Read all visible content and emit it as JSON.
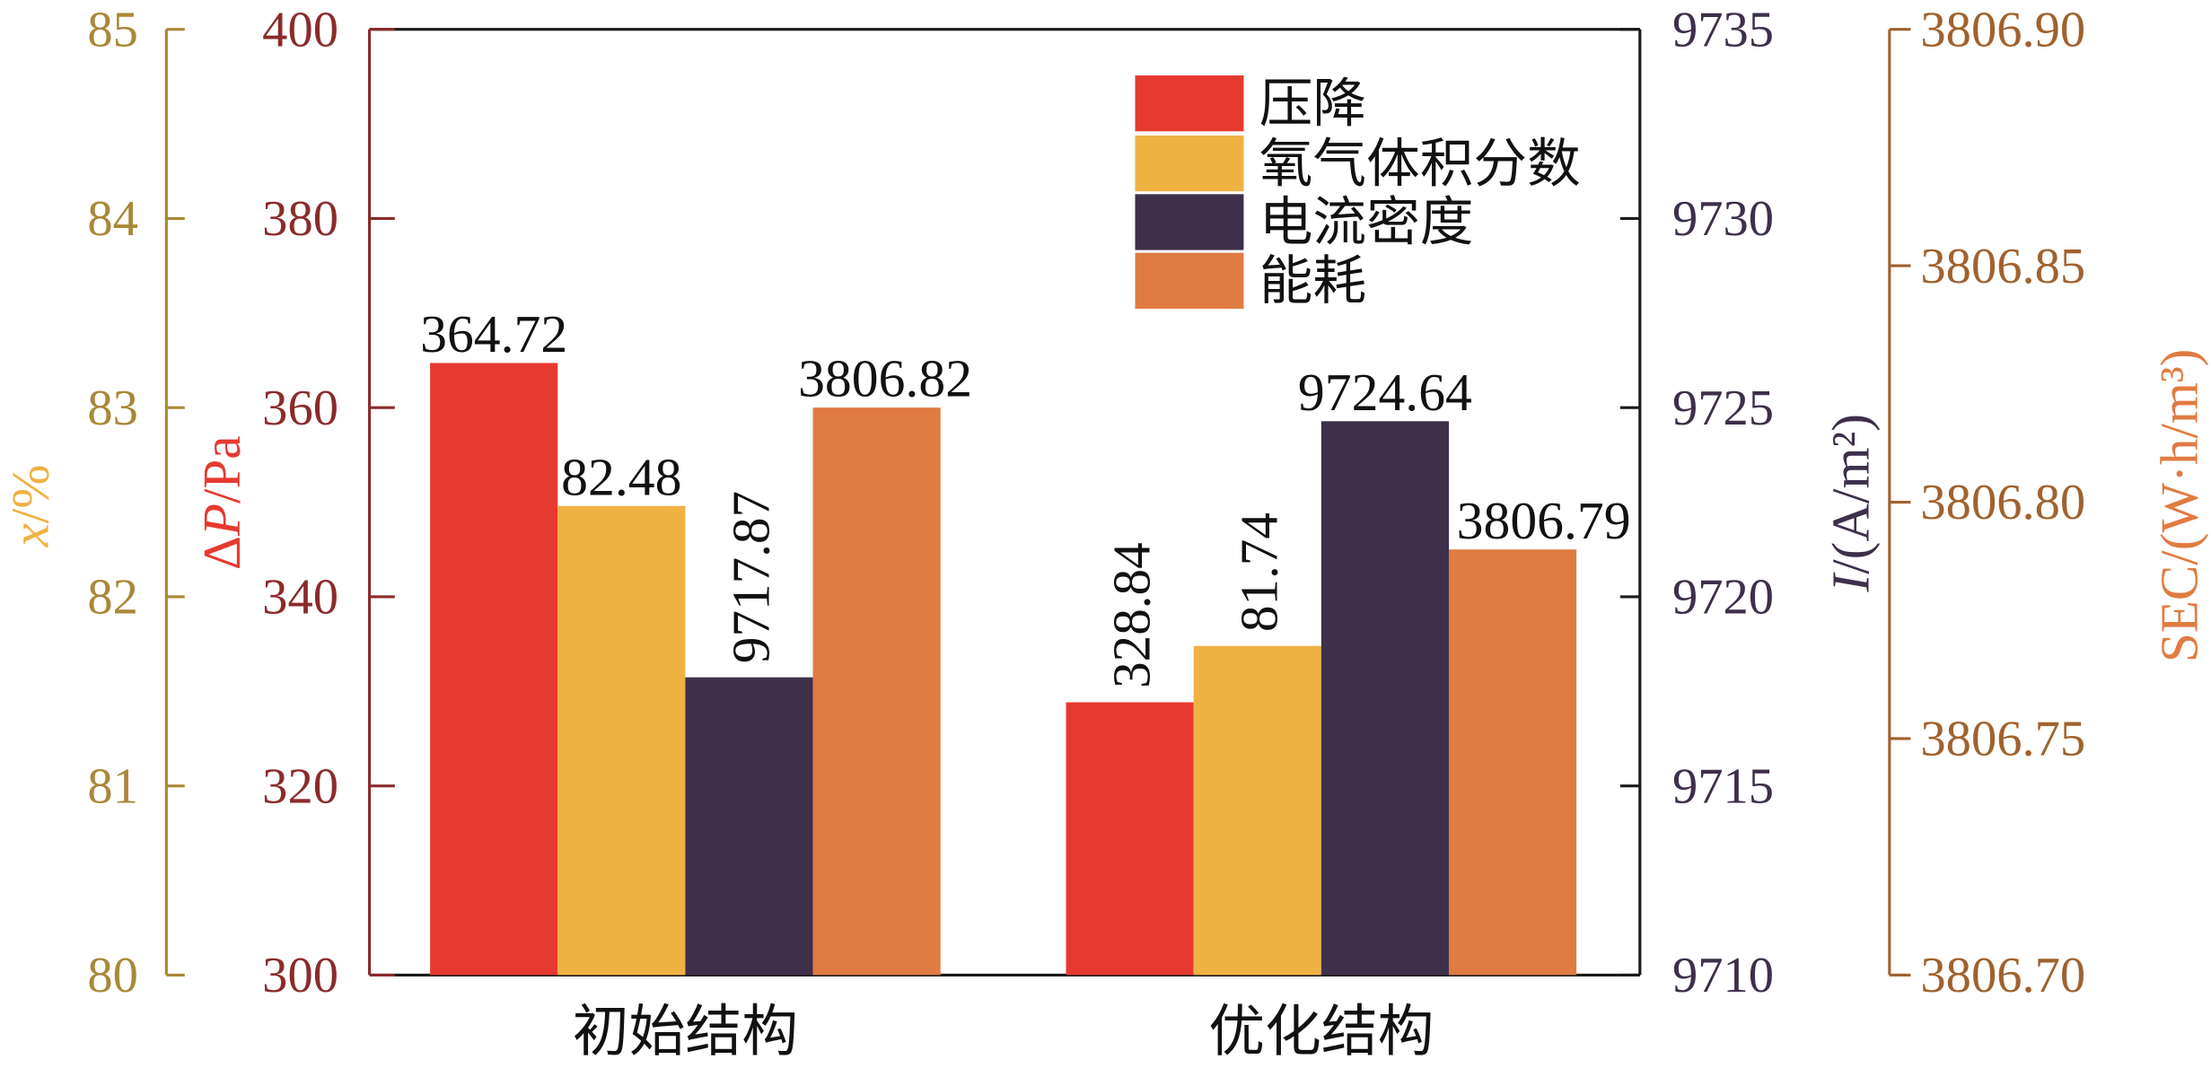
{
  "chart_data": {
    "type": "bar",
    "categories": [
      "初始结构",
      "优化结构"
    ],
    "series": [
      {
        "name": "压降",
        "axis": 1,
        "values": [
          364.72,
          328.84
        ],
        "labels": [
          "364.72",
          "328.84"
        ],
        "color": "#E63A30"
      },
      {
        "name": "氧气体积分数",
        "axis": 0,
        "values": [
          82.48,
          81.74
        ],
        "labels": [
          "82.48",
          "81.74"
        ],
        "color": "#F0B143"
      },
      {
        "name": "电流密度",
        "axis": 2,
        "values": [
          9717.87,
          9724.64
        ],
        "labels": [
          "9717.87",
          "9724.64"
        ],
        "color": "#3E2F4A"
      },
      {
        "name": "能耗",
        "axis": 3,
        "values": [
          3806.82,
          3806.79
        ],
        "labels": [
          "3806.82",
          "3806.79"
        ],
        "color": "#E07B42"
      }
    ],
    "axes": [
      {
        "title_var": "x",
        "title_rest": "/%",
        "range": [
          80,
          85
        ],
        "ticks": [
          "80",
          "81",
          "82",
          "83",
          "84",
          "85"
        ],
        "color": "#A98838",
        "title_color": "#F0B143"
      },
      {
        "title_prefix": "Δ",
        "title_var": "P",
        "title_rest": "/Pa",
        "range": [
          300,
          400
        ],
        "ticks": [
          "300",
          "320",
          "340",
          "360",
          "380",
          "400"
        ],
        "color": "#8B2B2B",
        "title_color": "#E63A30"
      },
      {
        "title_var": "I",
        "title_rest": "/(A/m²)",
        "range": [
          9710,
          9735
        ],
        "ticks": [
          "9710",
          "9715",
          "9720",
          "9725",
          "9730",
          "9735"
        ],
        "color": "#3E2F4A",
        "title_color": "#3E2F4A"
      },
      {
        "title_rest": "SEC/(W·h/m³)",
        "range": [
          3806.7,
          3806.9
        ],
        "ticks": [
          "3806.70",
          "3806.75",
          "3806.80",
          "3806.85",
          "3806.90"
        ],
        "color": "#A0622E",
        "title_color": "#E07B42"
      }
    ],
    "legend": "top-right",
    "grid": false
  }
}
